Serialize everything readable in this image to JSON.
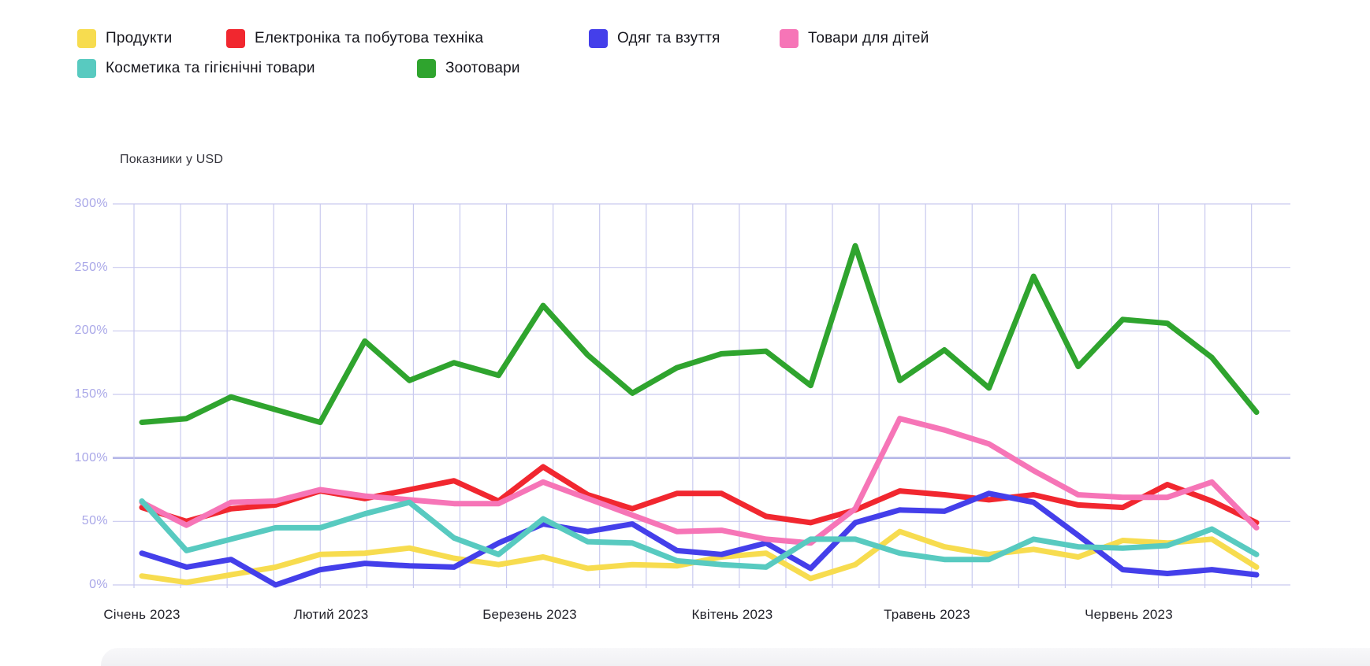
{
  "chart_data": {
    "type": "line",
    "title": "Показники у USD",
    "x_axis": {
      "unit": "week",
      "points_per_series": 26,
      "labels": [
        "Січень 2023",
        "Лютий 2023",
        "Березень 2023",
        "Квітень 2023",
        "Травень 2023",
        "Червень 2023"
      ]
    },
    "y_axis": {
      "min": 0,
      "max": 300,
      "step": 50,
      "ticks": [
        "0%",
        "50%",
        "100%",
        "150%",
        "200%",
        "250%",
        "300%"
      ],
      "emphasized_tick": "100%",
      "grid": true
    },
    "legend_position": "top-left",
    "series": [
      {
        "name": "Продукти",
        "color": "#F7DC4F",
        "values": [
          7,
          2,
          8,
          14,
          24,
          25,
          29,
          21,
          16,
          22,
          13,
          16,
          15,
          22,
          25,
          5,
          16,
          42,
          30,
          24,
          28,
          22,
          35,
          33,
          36,
          14
        ]
      },
      {
        "name": "Електроніка та побутова техніка",
        "color": "#F1272F",
        "values": [
          61,
          50,
          60,
          63,
          74,
          68,
          75,
          82,
          66,
          93,
          71,
          60,
          72,
          72,
          54,
          49,
          59,
          74,
          71,
          67,
          71,
          63,
          61,
          79,
          66,
          49
        ]
      },
      {
        "name": "Одяг та взуття",
        "color": "#443FEA",
        "values": [
          25,
          14,
          20,
          0,
          12,
          17,
          15,
          14,
          33,
          48,
          42,
          48,
          27,
          24,
          33,
          13,
          49,
          59,
          58,
          72,
          65,
          39,
          12,
          9,
          12,
          8
        ]
      },
      {
        "name": "Товари для дітей",
        "color": "#F675B7",
        "values": [
          65,
          47,
          65,
          66,
          75,
          70,
          67,
          64,
          64,
          81,
          68,
          55,
          42,
          43,
          36,
          33,
          60,
          131,
          122,
          111,
          90,
          71,
          69,
          69,
          81,
          45
        ]
      },
      {
        "name": "Косметика та гігієнічні товари",
        "color": "#58CAC0",
        "values": [
          66,
          27,
          36,
          45,
          45,
          56,
          65,
          37,
          24,
          52,
          34,
          33,
          19,
          16,
          14,
          36,
          36,
          25,
          20,
          20,
          36,
          30,
          29,
          31,
          44,
          24
        ]
      },
      {
        "name": "Зоотовари",
        "color": "#2FA42E",
        "values": [
          128,
          131,
          148,
          138,
          128,
          192,
          161,
          175,
          165,
          220,
          181,
          151,
          171,
          182,
          184,
          157,
          267,
          161,
          185,
          155,
          243,
          172,
          209,
          206,
          179,
          136
        ]
      }
    ]
  }
}
